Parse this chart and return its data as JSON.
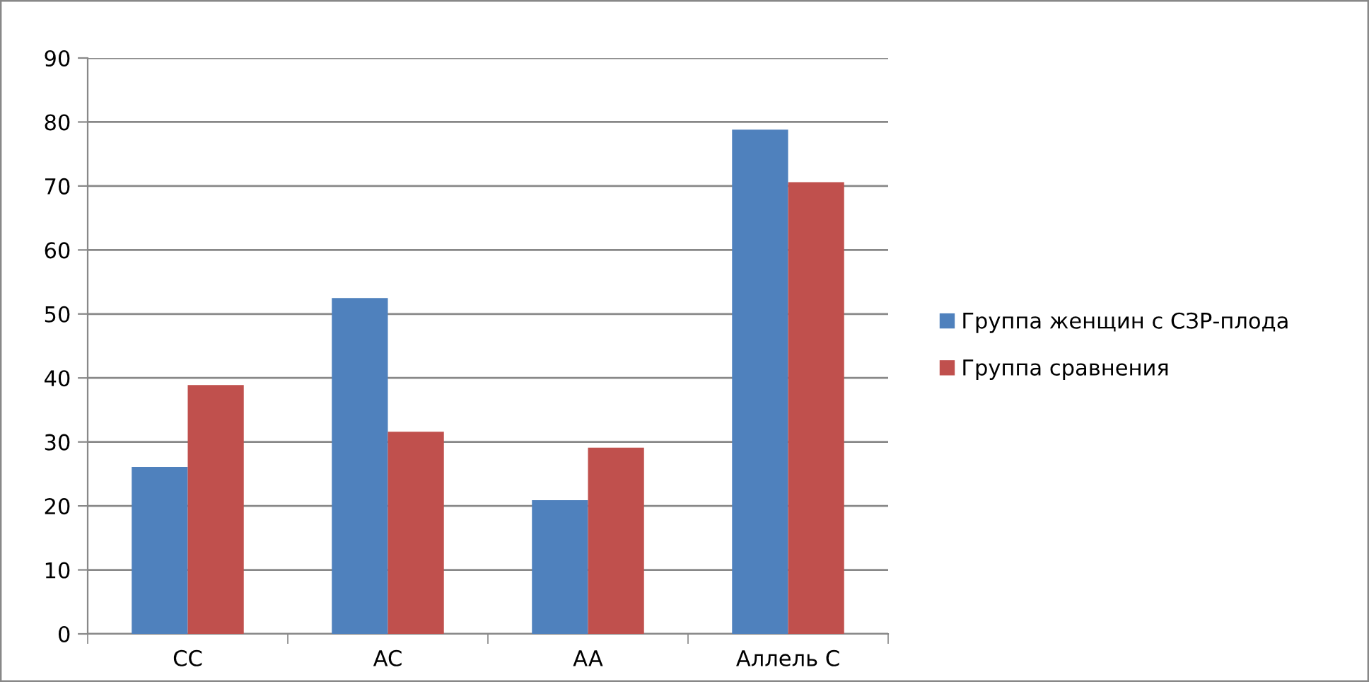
{
  "chart_data": {
    "type": "bar",
    "categories": [
      "CC",
      "AC",
      "AA",
      "Аллель С"
    ],
    "series": [
      {
        "name": "Группа женщин с СЗР-плода",
        "color": "#4f81bd",
        "values": [
          26.1,
          52.5,
          20.9,
          78.8
        ]
      },
      {
        "name": "Группа сравнения",
        "color": "#c0504d",
        "values": [
          38.9,
          31.6,
          29.1,
          70.6
        ]
      }
    ],
    "ylim": [
      0,
      90
    ],
    "yticks": [
      0,
      10,
      20,
      30,
      40,
      50,
      60,
      70,
      80,
      90
    ],
    "grid": "y",
    "legend": "right"
  }
}
